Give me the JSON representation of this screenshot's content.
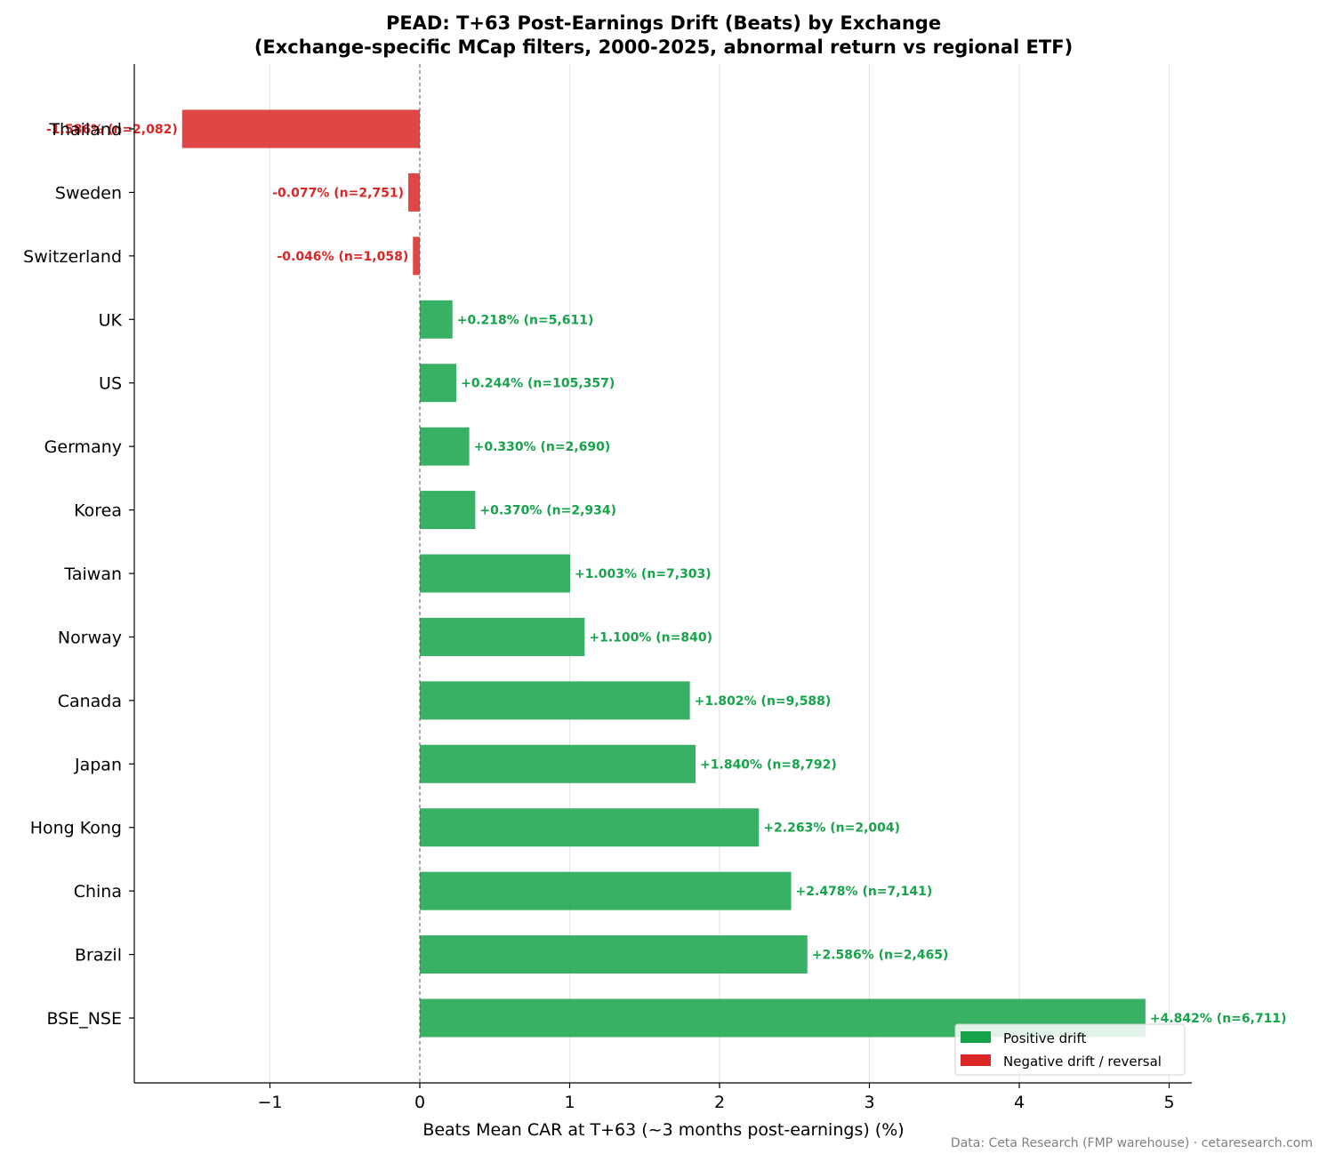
{
  "chart_data": {
    "type": "bar",
    "orientation": "horizontal",
    "title_line1": "PEAD: T+63 Post-Earnings Drift (Beats) by Exchange",
    "title_line2": "(Exchange-specific MCap filters, 2000-2025, abnormal return vs regional ETF)",
    "xlabel": "Beats Mean CAR at T+63 (~3 months post-earnings) (%)",
    "ylabel": "",
    "xlim": [
      -1.9,
      5.16
    ],
    "xticks": [
      -1,
      0,
      1,
      2,
      3,
      4,
      5
    ],
    "xtick_labels": [
      "−1",
      "0",
      "1",
      "2",
      "3",
      "4",
      "5"
    ],
    "grid": "x",
    "zero_line": "dashed",
    "categories": [
      "Thailand",
      "Sweden",
      "Switzerland",
      "UK",
      "US",
      "Germany",
      "Korea",
      "Taiwan",
      "Norway",
      "Canada",
      "Japan",
      "Hong Kong",
      "China",
      "Brazil",
      "BSE_NSE"
    ],
    "values": [
      -1.586,
      -0.077,
      -0.046,
      0.218,
      0.244,
      0.33,
      0.37,
      1.003,
      1.1,
      1.802,
      1.84,
      2.263,
      2.478,
      2.586,
      4.842
    ],
    "data_labels": [
      "-1.586%  (n=2,082)",
      "-0.077%  (n=2,751)",
      "-0.046%  (n=1,058)",
      "+0.218%  (n=5,611)",
      "+0.244%  (n=105,357)",
      "+0.330%  (n=2,690)",
      "+0.370%  (n=2,934)",
      "+1.003%  (n=7,303)",
      "+1.100%  (n=840)",
      "+1.802%  (n=9,588)",
      "+1.840%  (n=8,792)",
      "+2.263%  (n=2,004)",
      "+2.478%  (n=7,141)",
      "+2.586%  (n=2,465)",
      "+4.842%  (n=6,711)"
    ],
    "colors": {
      "positive": "#16a34a",
      "negative": "#dc2626"
    },
    "legend": {
      "placement": "lower-right",
      "entries": [
        {
          "label": "Positive drift",
          "color": "#16a34a"
        },
        {
          "label": "Negative drift / reversal",
          "color": "#dc2626"
        }
      ]
    }
  },
  "source_note": "Data: Ceta Research (FMP warehouse) · cetaresearch.com"
}
